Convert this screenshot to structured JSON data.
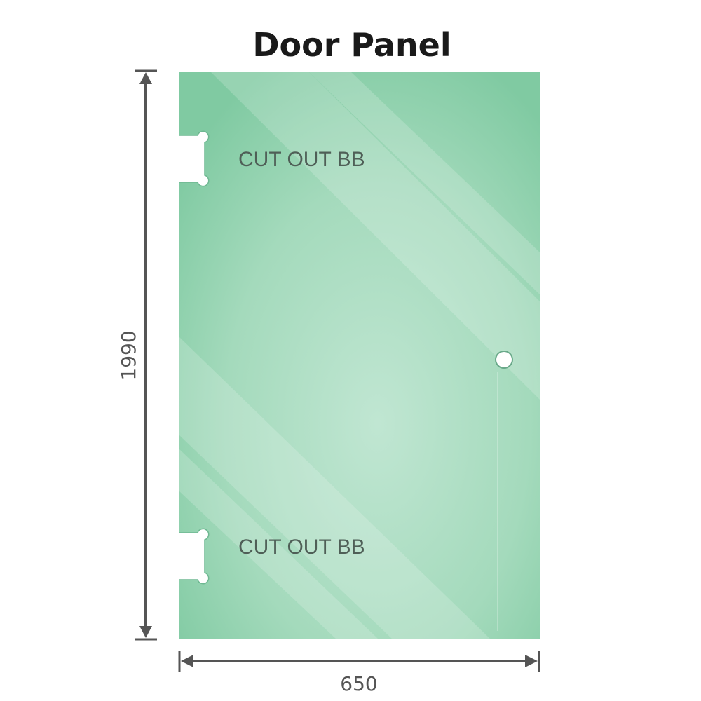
{
  "title": "Door Panel",
  "cutouts": [
    {
      "label": "CUT OUT BB"
    },
    {
      "label": "CUT OUT BB"
    }
  ],
  "dimensions": {
    "height": "1990",
    "width": "650"
  },
  "colors": {
    "glass_edge": "#7fcaa1",
    "glass_center": "#bde5d0",
    "dimension_line": "#555555"
  }
}
